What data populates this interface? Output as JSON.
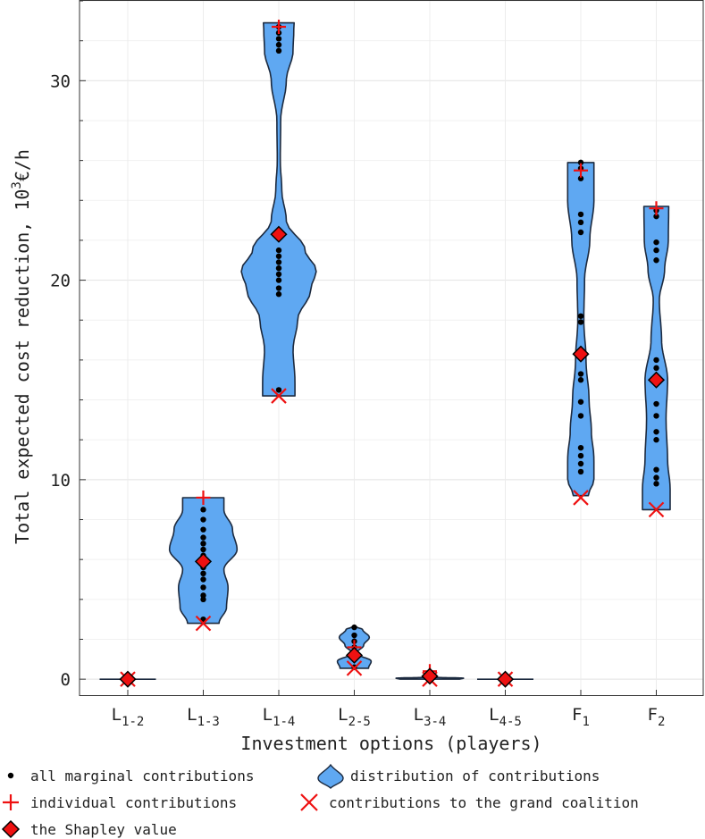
{
  "chart_data": {
    "type": "violin",
    "xlabel": "Investment options (players)",
    "ylabel": "Total expected cost reduction, 10³€/h",
    "ylabel_parts": {
      "main": "Total expected cost reduction, 10",
      "sup": "3",
      "unit": "€/h"
    },
    "ylim": [
      -0.8,
      34
    ],
    "yticks": [
      0,
      10,
      20,
      30
    ],
    "grid": true,
    "categories": [
      {
        "base": "L",
        "sub": "1-2"
      },
      {
        "base": "L",
        "sub": "1-3"
      },
      {
        "base": "L",
        "sub": "1-4"
      },
      {
        "base": "L",
        "sub": "2-5"
      },
      {
        "base": "L",
        "sub": "3-4"
      },
      {
        "base": "L",
        "sub": "4-5"
      },
      {
        "base": "F",
        "sub": "1"
      },
      {
        "base": "F",
        "sub": "2"
      }
    ],
    "series": [
      {
        "name": "all marginal contributions",
        "values": [
          [
            0
          ],
          [
            3.0,
            4.0,
            4.2,
            4.6,
            5.0,
            5.3,
            5.6,
            5.9,
            6.2,
            6.5,
            6.8,
            7.1,
            7.5,
            8.0,
            8.5
          ],
          [
            14.5,
            19.3,
            19.6,
            20.0,
            20.3,
            20.6,
            20.9,
            21.2,
            21.5,
            31.5,
            31.8,
            32.1,
            32.4,
            32.7
          ],
          [
            0.6,
            1.0,
            1.3,
            1.6,
            1.9,
            2.2,
            2.6
          ],
          [
            0,
            0.15,
            0.3
          ],
          [
            0
          ],
          [
            10.4,
            10.8,
            11.2,
            11.6,
            13.2,
            13.9,
            15.0,
            15.3,
            17.9,
            18.2,
            22.4,
            22.9,
            23.3,
            25.1,
            25.6,
            25.9
          ],
          [
            9.8,
            10.1,
            10.5,
            12.0,
            12.4,
            13.2,
            13.8,
            15.2,
            15.6,
            16.0,
            21.0,
            21.5,
            21.9,
            23.2,
            23.5
          ]
        ]
      },
      {
        "name": "distribution of contributions",
        "values": [
          {
            "min": 0,
            "max": 0,
            "halfwidth": 0.75,
            "profile": [
              [
                0,
                1
              ]
            ]
          },
          {
            "min": 2.8,
            "max": 9.1,
            "profile": [
              [
                2.8,
                0.42
              ],
              [
                3.6,
                0.62
              ],
              [
                4.6,
                0.66
              ],
              [
                5.5,
                0.55
              ],
              [
                6.5,
                0.9
              ],
              [
                7.5,
                0.78
              ],
              [
                8.5,
                0.55
              ],
              [
                9.1,
                0.55
              ]
            ]
          },
          {
            "min": 14.2,
            "max": 32.9,
            "profile": [
              [
                14.2,
                0.43
              ],
              [
                15.0,
                0.43
              ],
              [
                16.5,
                0.38
              ],
              [
                18.0,
                0.5
              ],
              [
                19.5,
                0.85
              ],
              [
                20.5,
                1.0
              ],
              [
                21.5,
                0.7
              ],
              [
                23.0,
                0.2
              ],
              [
                24.5,
                0.08
              ],
              [
                26.0,
                0.04
              ],
              [
                28.0,
                0.05
              ],
              [
                30.0,
                0.2
              ],
              [
                31.5,
                0.38
              ],
              [
                32.5,
                0.4
              ],
              [
                32.9,
                0.41
              ]
            ]
          },
          {
            "min": 0.55,
            "max": 2.6,
            "profile": [
              [
                0.55,
                0.38
              ],
              [
                0.9,
                0.45
              ],
              [
                1.3,
                0.05
              ],
              [
                1.7,
                0.25
              ],
              [
                2.1,
                0.4
              ],
              [
                2.5,
                0.22
              ],
              [
                2.6,
                0.08
              ]
            ]
          },
          {
            "min": 0,
            "max": 0.1,
            "profile": [
              [
                0,
                0.8
              ],
              [
                0.05,
                0.9
              ],
              [
                0.1,
                0.05
              ]
            ]
          },
          {
            "min": 0,
            "max": 0,
            "halfwidth": 0.75,
            "profile": [
              [
                0,
                1
              ]
            ]
          },
          {
            "min": 9.2,
            "max": 25.9,
            "profile": [
              [
                9.2,
                0.2
              ],
              [
                10.0,
                0.35
              ],
              [
                11.0,
                0.35
              ],
              [
                12.5,
                0.28
              ],
              [
                14.0,
                0.22
              ],
              [
                16.0,
                0.14
              ],
              [
                18.0,
                0.08
              ],
              [
                20.0,
                0.1
              ],
              [
                22.0,
                0.24
              ],
              [
                24.0,
                0.35
              ],
              [
                25.9,
                0.35
              ]
            ]
          },
          {
            "min": 8.5,
            "max": 23.7,
            "profile": [
              [
                8.5,
                0.37
              ],
              [
                9.5,
                0.37
              ],
              [
                11.0,
                0.3
              ],
              [
                13.0,
                0.26
              ],
              [
                15.0,
                0.3
              ],
              [
                17.0,
                0.14
              ],
              [
                19.0,
                0.08
              ],
              [
                20.5,
                0.22
              ],
              [
                22.0,
                0.32
              ],
              [
                23.7,
                0.33
              ]
            ]
          }
        ]
      },
      {
        "name": "individual contributions",
        "values": [
          0,
          9.1,
          32.7,
          1.6,
          0.4,
          0,
          25.5,
          23.6
        ]
      },
      {
        "name": "contributions to the grand coalition",
        "values": [
          0,
          2.8,
          14.2,
          0.55,
          0,
          0,
          9.1,
          8.5
        ]
      },
      {
        "name": "the Shapley value",
        "values": [
          0,
          5.9,
          22.3,
          1.2,
          0.15,
          0,
          16.3,
          15.0
        ]
      }
    ],
    "colors": {
      "violin_fill": "#5fa8f2",
      "violin_edge": "#1c2a3f",
      "marker_red": "#ee1111",
      "dot": "#000000",
      "grid": "#e9e9e9"
    },
    "legend": {
      "placement": "below",
      "entries": [
        {
          "label": "all marginal contributions",
          "symbol": "dot"
        },
        {
          "label": "distribution of contributions",
          "symbol": "violin"
        },
        {
          "label": "individual contributions",
          "symbol": "plus"
        },
        {
          "label": "contributions to the grand coalition",
          "symbol": "cross"
        },
        {
          "label": "the Shapley value",
          "symbol": "diamond"
        }
      ]
    }
  }
}
